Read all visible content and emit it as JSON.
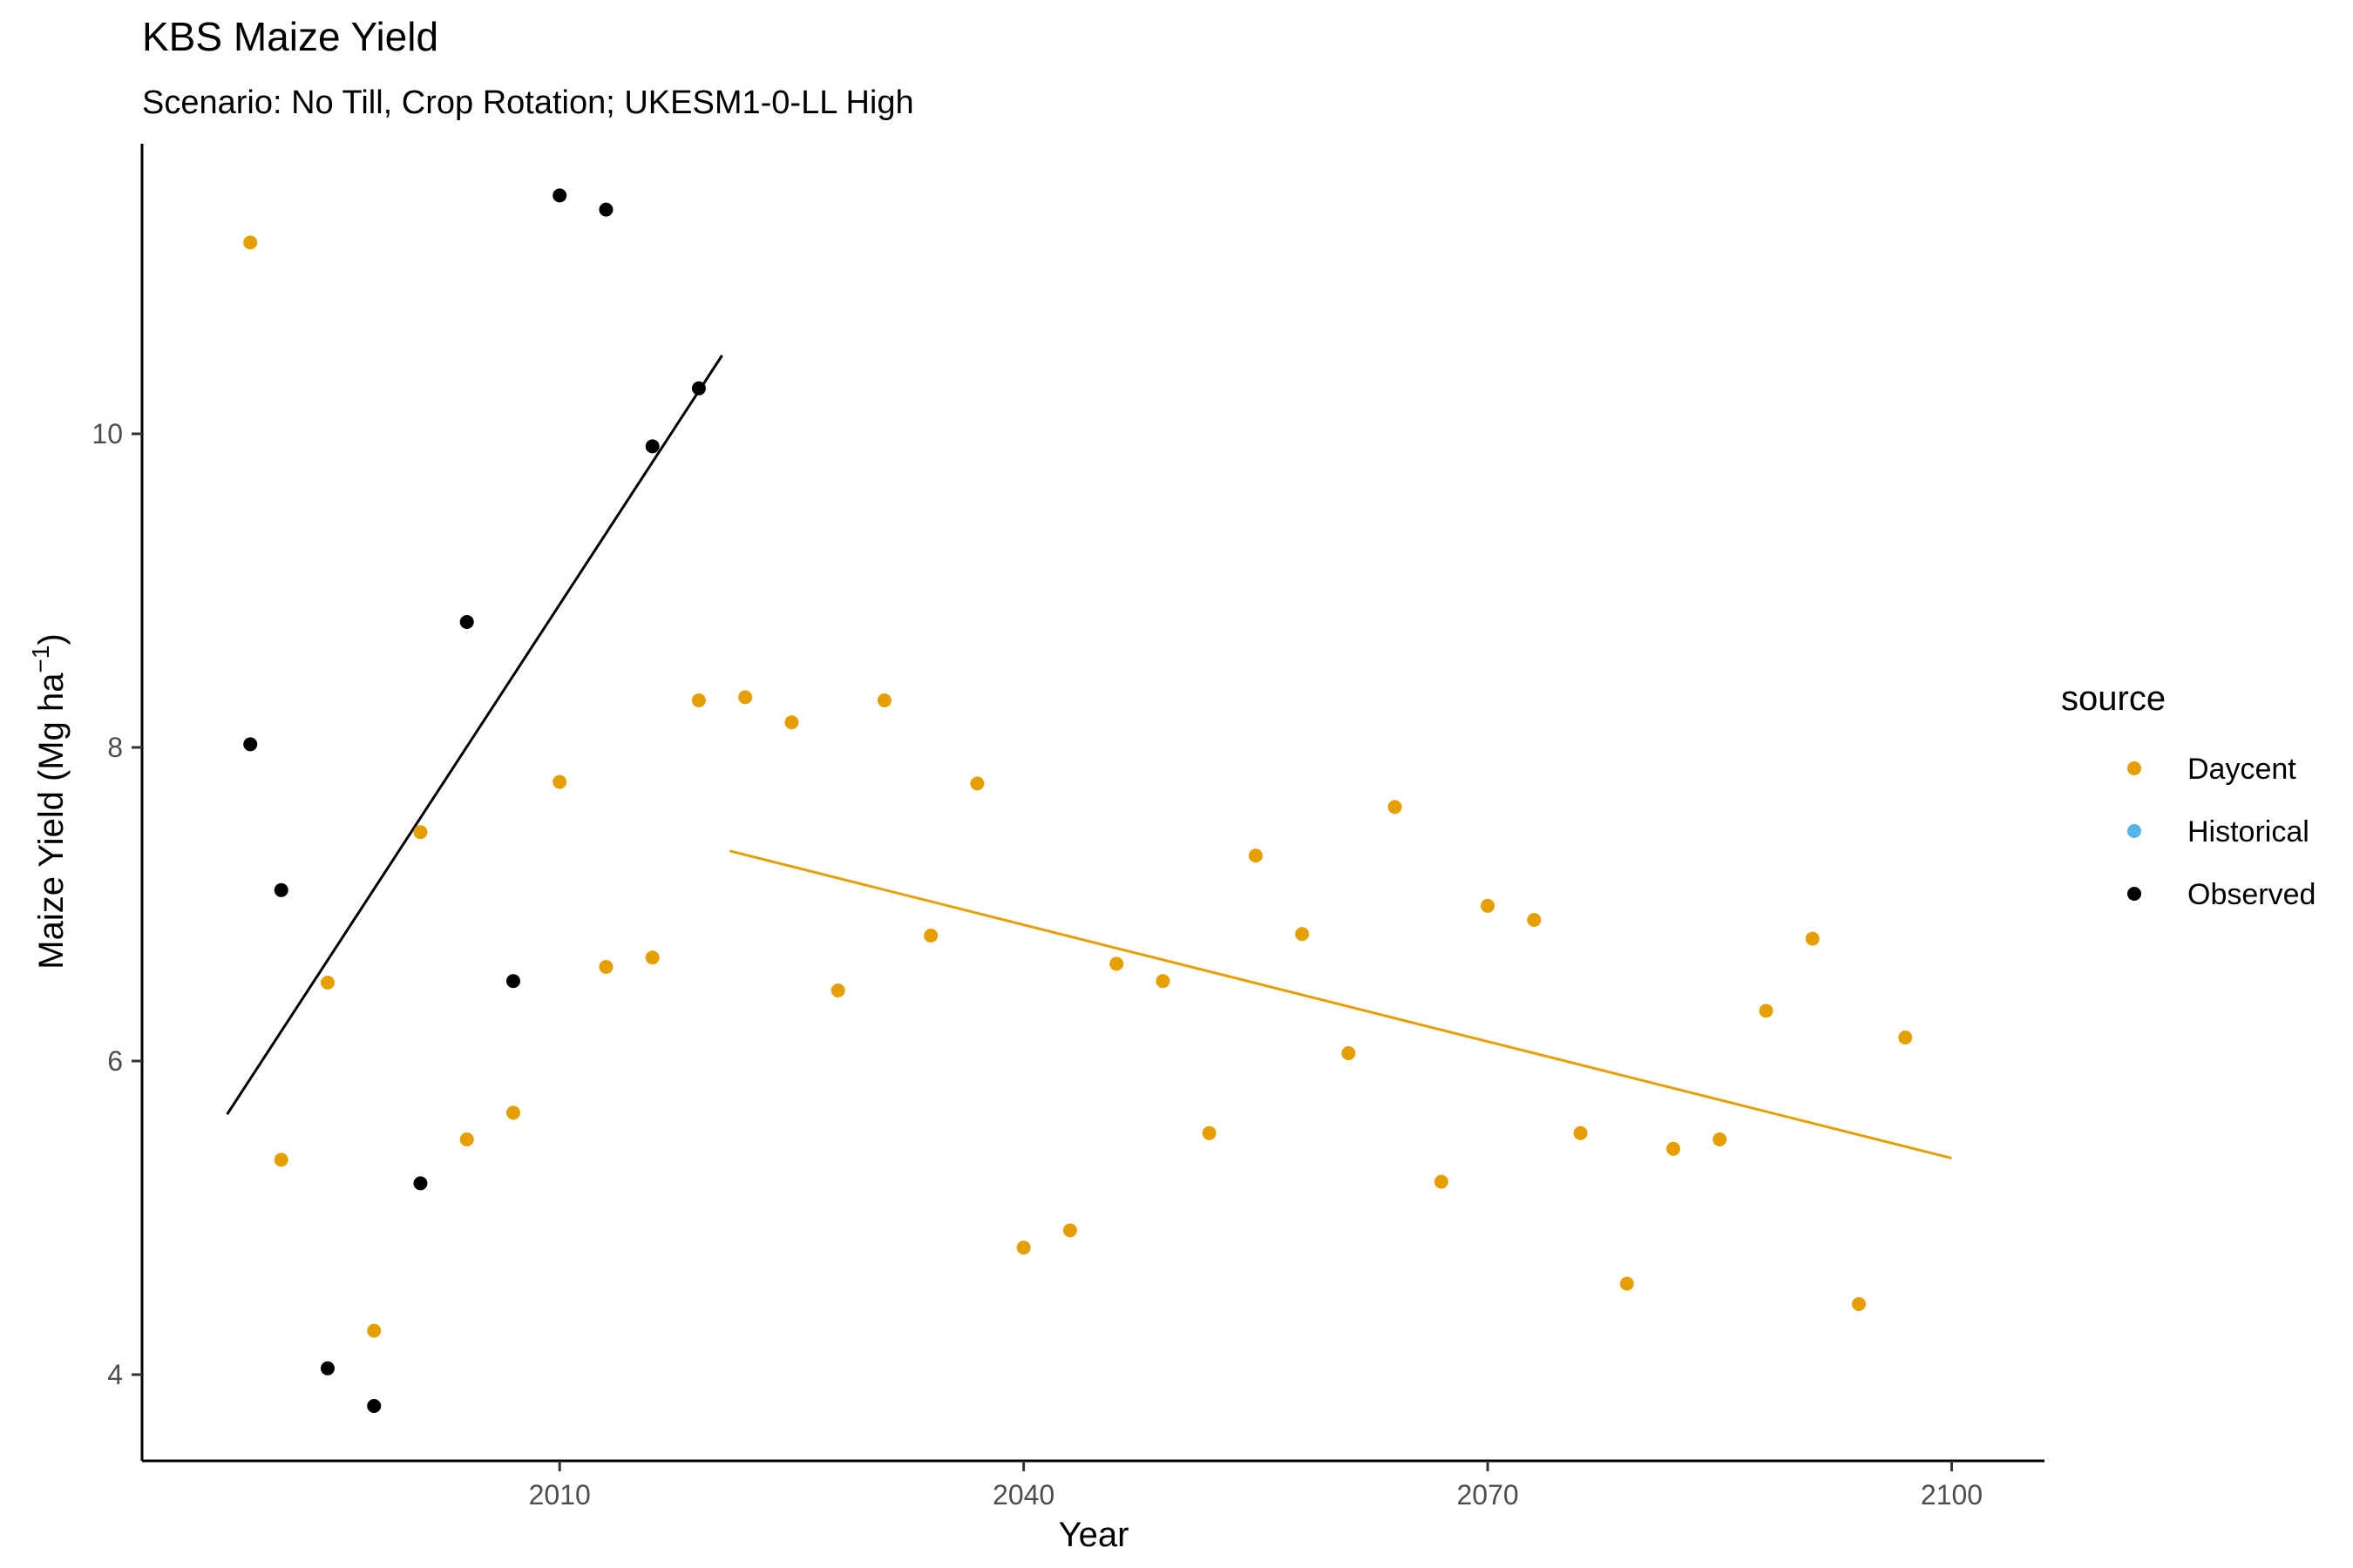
{
  "chart_data": {
    "type": "scatter",
    "title": "KBS Maize Yield",
    "subtitle": "Scenario: No Till, Crop Rotation; UKESM1-0-LL High",
    "xlabel": "Year",
    "ylabel_main": "Maize Yield (Mg ha",
    "ylabel_sup": "−1",
    "ylabel_close": ")",
    "xlim": [
      1983,
      2106
    ],
    "ylim": [
      3.45,
      11.85
    ],
    "x_ticks": [
      2010,
      2040,
      2070,
      2100
    ],
    "y_ticks": [
      4,
      6,
      8,
      10
    ],
    "grid": false,
    "legend": {
      "title": "source",
      "position": "right",
      "entries": [
        {
          "label": "Daycent",
          "color": "#E69F00"
        },
        {
          "label": "Historical",
          "color": "#56B4E9"
        },
        {
          "label": "Observed",
          "color": "#000000"
        }
      ]
    },
    "series": [
      {
        "name": "Daycent",
        "color": "#E69F00",
        "points": [
          [
            1990,
            11.22
          ],
          [
            1992,
            5.37
          ],
          [
            1995,
            6.5
          ],
          [
            1998,
            4.28
          ],
          [
            2001,
            7.46
          ],
          [
            2004,
            5.5
          ],
          [
            2007,
            5.67
          ],
          [
            2010,
            7.78
          ],
          [
            2013,
            6.6
          ],
          [
            2016,
            6.66
          ],
          [
            2019,
            8.3
          ],
          [
            2022,
            8.32
          ],
          [
            2025,
            8.16
          ],
          [
            2028,
            6.45
          ],
          [
            2031,
            8.3
          ],
          [
            2034,
            6.8
          ],
          [
            2037,
            7.77
          ],
          [
            2040,
            4.81
          ],
          [
            2043,
            4.92
          ],
          [
            2046,
            6.62
          ],
          [
            2049,
            6.51
          ],
          [
            2052,
            5.54
          ],
          [
            2055,
            7.31
          ],
          [
            2058,
            6.81
          ],
          [
            2061,
            6.05
          ],
          [
            2064,
            7.62
          ],
          [
            2067,
            5.23
          ],
          [
            2070,
            6.99
          ],
          [
            2073,
            6.9
          ],
          [
            2076,
            5.54
          ],
          [
            2079,
            4.58
          ],
          [
            2082,
            5.44
          ],
          [
            2085,
            5.5
          ],
          [
            2088,
            6.32
          ],
          [
            2091,
            6.78
          ],
          [
            2094,
            4.45
          ],
          [
            2097,
            6.15
          ]
        ]
      },
      {
        "name": "Historical",
        "color": "#56B4E9",
        "points": []
      },
      {
        "name": "Observed",
        "color": "#000000",
        "points": [
          [
            1990,
            8.02
          ],
          [
            1992,
            7.09
          ],
          [
            1995,
            4.04
          ],
          [
            1998,
            3.8
          ],
          [
            2001,
            5.22
          ],
          [
            2004,
            8.8
          ],
          [
            2007,
            6.51
          ],
          [
            2010,
            11.52
          ],
          [
            2013,
            11.43
          ],
          [
            2016,
            9.92
          ],
          [
            2019,
            10.29
          ]
        ]
      }
    ],
    "trend_lines": [
      {
        "series": "Observed",
        "color": "#000000",
        "x": [
          1988.5,
          2020.5
        ],
        "y": [
          5.66,
          10.5
        ]
      },
      {
        "series": "Daycent",
        "color": "#E69F00",
        "x": [
          2021,
          2100
        ],
        "y": [
          7.34,
          5.38
        ]
      }
    ]
  }
}
